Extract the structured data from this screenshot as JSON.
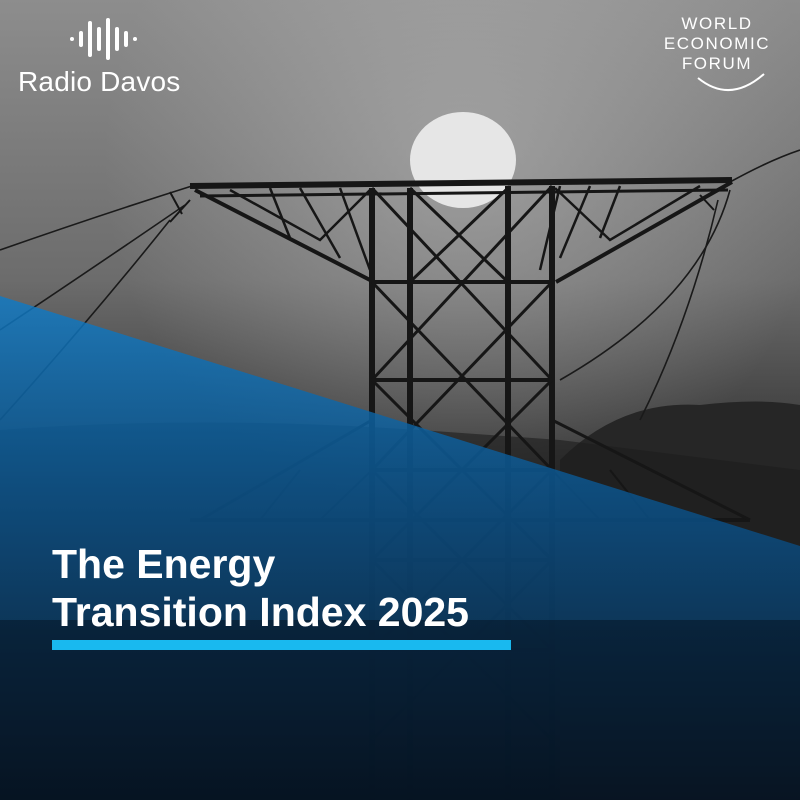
{
  "brand": {
    "name": "Radio Davos",
    "icon": "sound-wave-icon"
  },
  "partner": {
    "lines": [
      "WORLD",
      "ECONOMIC",
      "FORUM"
    ],
    "icon": "wef-arc-icon"
  },
  "episode": {
    "title_line_1": "The Energy",
    "title_line_2": "Transition Index 2025"
  },
  "colors": {
    "accent": "#19b9ef",
    "blue_overlay": "#0d6fb8",
    "title_text": "#ffffff"
  }
}
